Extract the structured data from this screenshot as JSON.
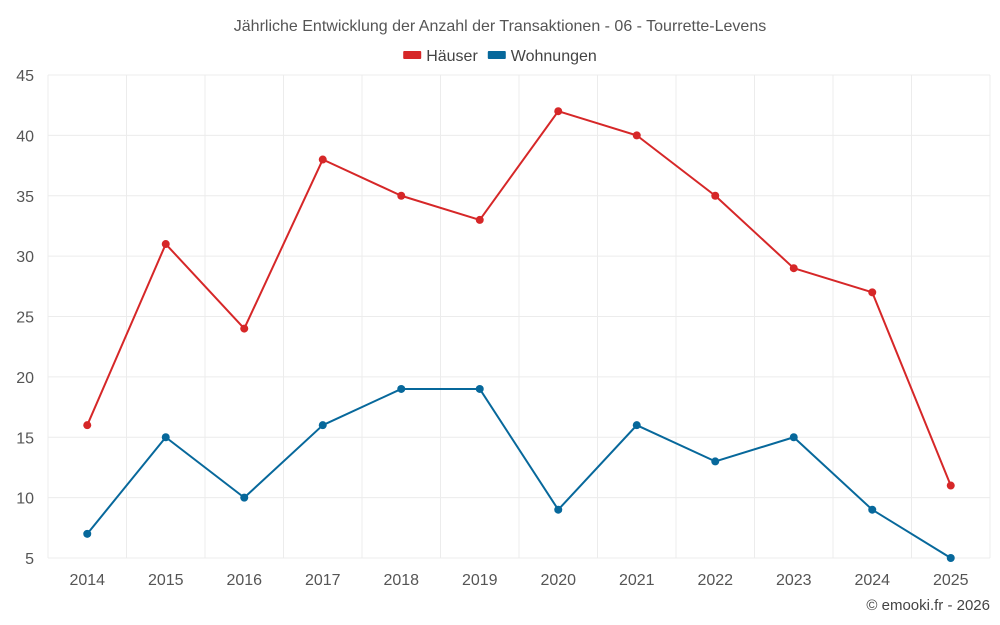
{
  "chart_data": {
    "type": "line",
    "title": "Jährliche Entwicklung der Anzahl der Transaktionen - 06 - Tourrette-Levens",
    "xlabel": "",
    "ylabel": "",
    "categories": [
      "2014",
      "2015",
      "2016",
      "2017",
      "2018",
      "2019",
      "2020",
      "2021",
      "2022",
      "2023",
      "2024",
      "2025"
    ],
    "ylim": [
      5,
      45
    ],
    "yticks": [
      5,
      10,
      15,
      20,
      25,
      30,
      35,
      40,
      45
    ],
    "grid": true,
    "legend_position": "top-center",
    "series": [
      {
        "name": "Häuser",
        "color": "#d62728",
        "values": [
          16,
          31,
          24,
          38,
          35,
          33,
          42,
          40,
          35,
          29,
          27,
          11
        ]
      },
      {
        "name": "Wohnungen",
        "color": "#07689b",
        "values": [
          7,
          15,
          10,
          16,
          19,
          19,
          9,
          16,
          13,
          15,
          9,
          5
        ]
      }
    ]
  },
  "footer": {
    "credit": "© emooki.fr - 2026"
  }
}
